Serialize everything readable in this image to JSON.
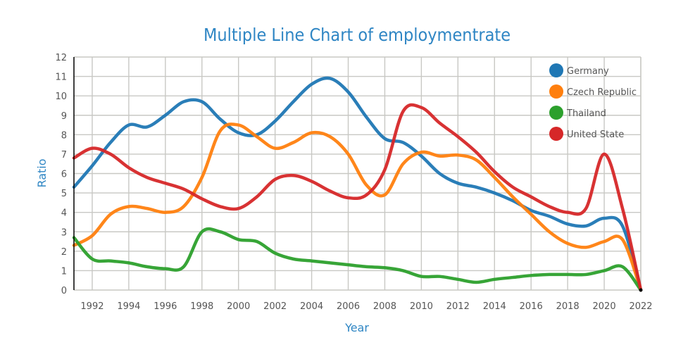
{
  "chart_data": {
    "type": "line",
    "title": "Multiple Line Chart of employmentrate",
    "xlabel": "Year",
    "ylabel": "Ratio",
    "x": [
      1991,
      1992,
      1993,
      1994,
      1995,
      1996,
      1997,
      1998,
      1999,
      2000,
      2001,
      2002,
      2003,
      2004,
      2005,
      2006,
      2007,
      2008,
      2009,
      2010,
      2011,
      2012,
      2013,
      2014,
      2015,
      2016,
      2017,
      2018,
      2019,
      2020,
      2021,
      2022
    ],
    "xlim": [
      1991,
      2022
    ],
    "ylim": [
      0,
      12
    ],
    "x_ticks": [
      "1992",
      "1994",
      "1996",
      "1998",
      "2000",
      "2002",
      "2004",
      "2006",
      "2008",
      "2010",
      "2012",
      "2014",
      "2016",
      "2018",
      "2020",
      "2022"
    ],
    "y_ticks": [
      "0",
      "1",
      "2",
      "3",
      "4",
      "5",
      "6",
      "7",
      "8",
      "9",
      "10",
      "11",
      "12"
    ],
    "grid": true,
    "legend_position": "top-right",
    "series": [
      {
        "name": "Germany",
        "color": "#1f77b4",
        "values": [
          5.3,
          6.4,
          7.6,
          8.5,
          8.4,
          9.0,
          9.7,
          9.7,
          8.8,
          8.1,
          8.0,
          8.7,
          9.7,
          10.6,
          10.9,
          10.2,
          8.9,
          7.8,
          7.6,
          6.9,
          6.0,
          5.5,
          5.3,
          5.0,
          4.6,
          4.1,
          3.8,
          3.4,
          3.3,
          3.7,
          3.3,
          0
        ]
      },
      {
        "name": "Czech Republic",
        "color": "#ff7f0e",
        "values": [
          2.3,
          2.8,
          3.9,
          4.3,
          4.2,
          4.0,
          4.3,
          5.8,
          8.2,
          8.5,
          7.9,
          7.3,
          7.6,
          8.1,
          7.9,
          7.0,
          5.4,
          4.9,
          6.5,
          7.1,
          6.9,
          6.95,
          6.7,
          5.8,
          4.8,
          3.9,
          3.0,
          2.4,
          2.2,
          2.5,
          2.6,
          0
        ]
      },
      {
        "name": "Thailand",
        "color": "#2ca02c",
        "values": [
          2.7,
          1.6,
          1.5,
          1.4,
          1.2,
          1.1,
          1.2,
          3.0,
          3.0,
          2.6,
          2.5,
          1.9,
          1.6,
          1.5,
          1.4,
          1.3,
          1.2,
          1.15,
          1.0,
          0.7,
          0.7,
          0.55,
          0.4,
          0.55,
          0.65,
          0.75,
          0.8,
          0.8,
          0.8,
          1.0,
          1.2,
          0
        ]
      },
      {
        "name": "United State",
        "color": "#d62728",
        "values": [
          6.8,
          7.3,
          7.0,
          6.3,
          5.8,
          5.5,
          5.2,
          4.7,
          4.3,
          4.2,
          4.8,
          5.7,
          5.9,
          5.6,
          5.1,
          4.75,
          4.9,
          6.2,
          9.2,
          9.4,
          8.6,
          7.9,
          7.1,
          6.1,
          5.3,
          4.8,
          4.3,
          4.0,
          4.2,
          7.0,
          4.2,
          0
        ]
      }
    ]
  }
}
